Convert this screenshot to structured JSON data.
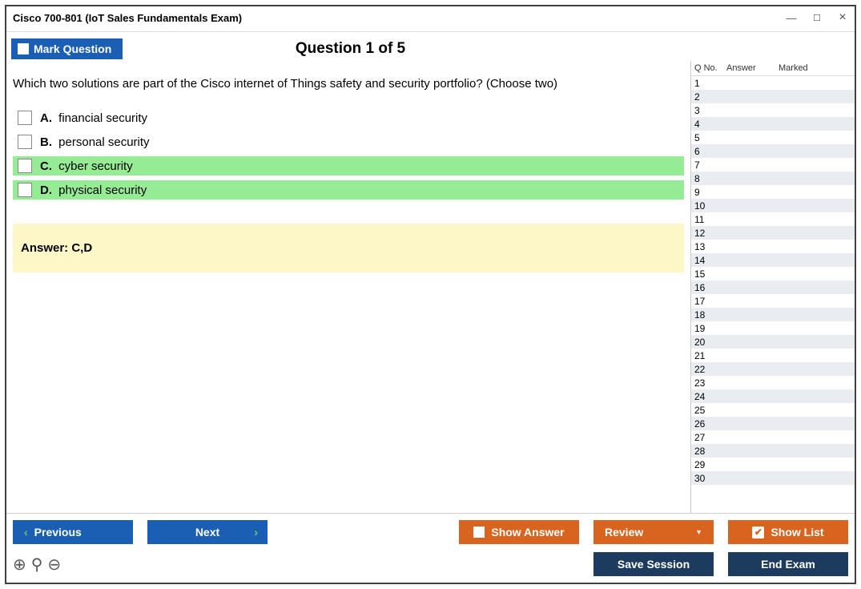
{
  "window": {
    "title": "Cisco 700-801 (IoT Sales Fundamentals Exam)"
  },
  "toolbar": {
    "mark_label": "Mark Question"
  },
  "question": {
    "heading": "Question 1 of 5",
    "text": "Which two solutions are part of the Cisco internet of Things safety and security portfolio? (Choose two)",
    "options": [
      {
        "letter": "A.",
        "text": "financial security",
        "correct": false
      },
      {
        "letter": "B.",
        "text": "personal security",
        "correct": false
      },
      {
        "letter": "C.",
        "text": "cyber security",
        "correct": true
      },
      {
        "letter": "D.",
        "text": "physical security",
        "correct": true
      }
    ],
    "answer_label": "Answer: C,D"
  },
  "sidepanel": {
    "headers": {
      "qno": "Q No.",
      "answer": "Answer",
      "marked": "Marked"
    },
    "row_count": 30
  },
  "footer": {
    "previous": "Previous",
    "next": "Next",
    "show_answer": "Show Answer",
    "review": "Review",
    "show_list": "Show List",
    "save_session": "Save Session",
    "end_exam": "End Exam"
  },
  "colors": {
    "correct_bg": "#95ec95",
    "answer_bg": "#fdf6c6",
    "btn_blue": "#1a5fb4",
    "btn_orange": "#d9641f",
    "btn_navy": "#1d3b5e",
    "row_even": "#e9edf2"
  }
}
